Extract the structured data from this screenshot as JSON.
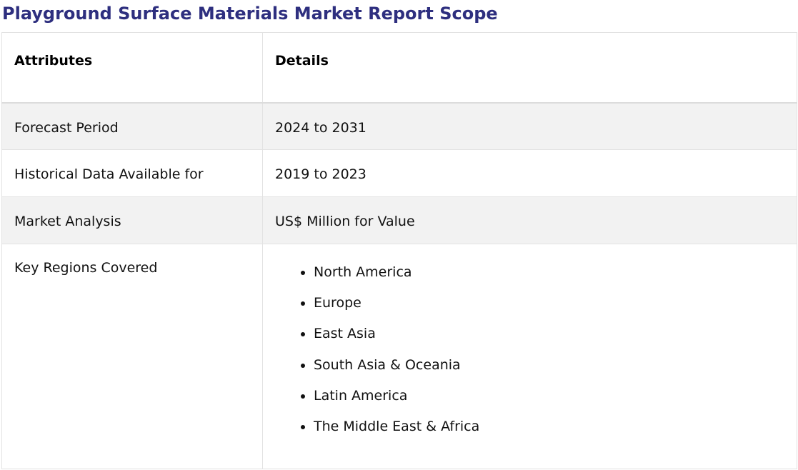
{
  "title": "Playground Surface Materials Market Report Scope",
  "table": {
    "headers": [
      "Attributes",
      "Details"
    ],
    "rows": [
      {
        "attribute": "Forecast Period",
        "detail": "2024 to 2031"
      },
      {
        "attribute": "Historical Data Available for",
        "detail": "2019 to 2023"
      },
      {
        "attribute": "Market Analysis",
        "detail": "US$ Million for Value"
      }
    ],
    "regions": {
      "attribute": "Key Regions Covered",
      "items": [
        "North America",
        "Europe",
        "East Asia",
        "South Asia & Oceania",
        "Latin America",
        "The Middle East & Africa"
      ]
    }
  },
  "colors": {
    "title": "#2e2f7f",
    "row_shade": "#f2f2f2",
    "border": "#e2e2e2"
  }
}
